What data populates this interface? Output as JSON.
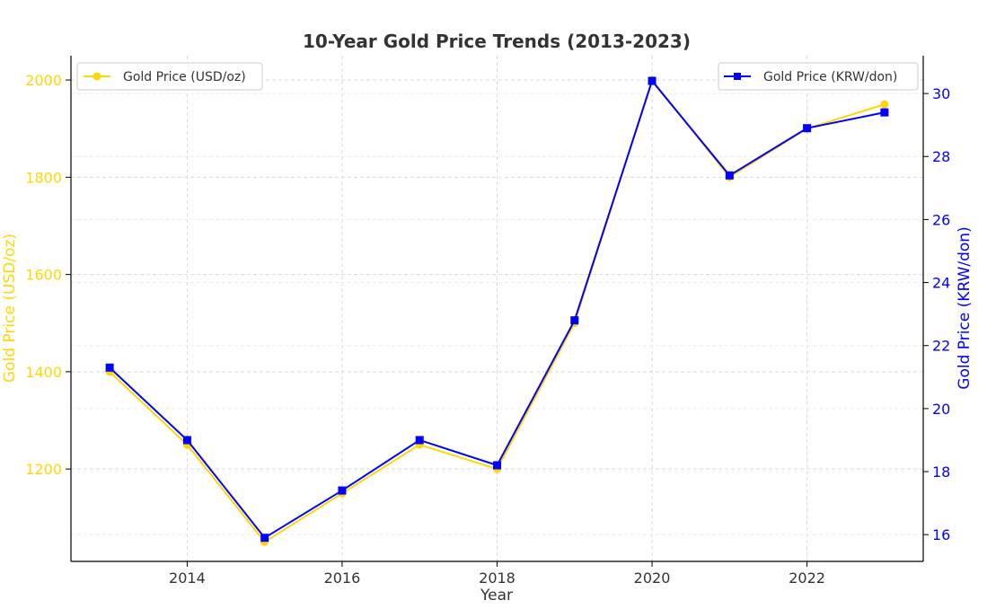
{
  "chart_data": {
    "type": "line",
    "title": "10-Year Gold Price Trends (2013-2023)",
    "xlabel": "Year",
    "ylabel_left": "Gold Price (USD/oz)",
    "ylabel_right": "Gold Price (KRW/don)",
    "x": [
      2013,
      2014,
      2015,
      2016,
      2017,
      2018,
      2019,
      2020,
      2021,
      2022,
      2023
    ],
    "xlim": [
      2012.5,
      2023.5
    ],
    "xticks": [
      2014,
      2016,
      2018,
      2020,
      2022
    ],
    "ylim_left": [
      1010,
      2050
    ],
    "yticks_left": [
      1200,
      1400,
      1600,
      1800,
      2000
    ],
    "ylim_right": [
      15.15,
      31.2
    ],
    "yticks_right": [
      16,
      18,
      20,
      22,
      24,
      26,
      28,
      30
    ],
    "grid": true,
    "series": [
      {
        "name": "Gold Price (USD/oz)",
        "axis": "left",
        "color": "#FFD700",
        "marker": "circle",
        "values": [
          1400,
          1250,
          1050,
          1150,
          1250,
          1200,
          1500,
          2000,
          1800,
          1900,
          1950
        ]
      },
      {
        "name": "Gold Price (KRW/don)",
        "axis": "right",
        "color": "#0000FF",
        "marker": "square",
        "values": [
          21.3,
          19.0,
          15.9,
          17.4,
          19.0,
          18.2,
          22.8,
          30.4,
          27.4,
          28.9,
          29.4
        ]
      }
    ],
    "legend_left_position": "top-left",
    "legend_right_position": "top-right"
  }
}
